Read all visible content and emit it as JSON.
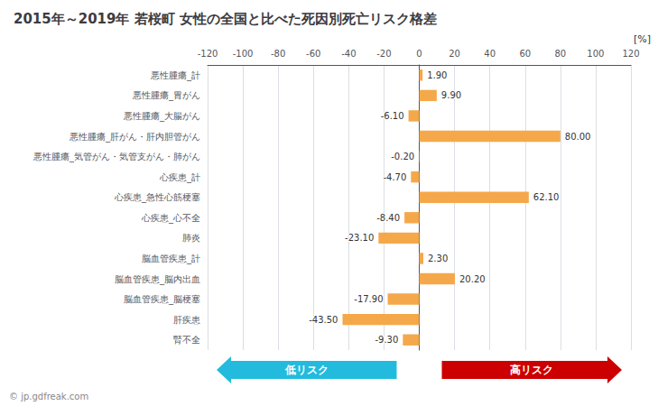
{
  "chart_data": {
    "type": "bar",
    "orientation": "horizontal",
    "title": "2015年～2019年 若桜町 女性の全国と比べた死因別死亡リスク格差",
    "categories": [
      "悪性腫瘍_計",
      "悪性腫瘍_胃がん",
      "悪性腫瘍_大腸がん",
      "悪性腫瘍_肝がん・肝内胆管がん",
      "悪性腫瘍_気管がん・気管支がん・肺がん",
      "心疾患_計",
      "心疾患_急性心筋梗塞",
      "心疾患_心不全",
      "肺炎",
      "脳血管疾患_計",
      "脳血管疾患_脳内出血",
      "脳血管疾患_脳梗塞",
      "肝疾患",
      "腎不全"
    ],
    "values": [
      1.9,
      9.9,
      -6.1,
      80.0,
      -0.2,
      -4.7,
      62.1,
      -8.4,
      -23.1,
      2.3,
      20.2,
      -17.9,
      -43.5,
      -9.3
    ],
    "value_labels": [
      "1.90",
      "9.90",
      "-6.10",
      "80.00",
      "-0.20",
      "-4.70",
      "62.10",
      "-8.40",
      "-23.10",
      "2.30",
      "20.20",
      "-17.90",
      "-43.50",
      "-9.30"
    ],
    "data_labels": true,
    "color": "#f5a84a",
    "xlabel": "[%]",
    "xlim": [
      -120,
      120
    ],
    "xticks": [
      -120,
      -100,
      -80,
      -60,
      -40,
      -20,
      0,
      20,
      40,
      60,
      80,
      100,
      120
    ],
    "grid": true,
    "annotations": [
      {
        "text": "低リスク",
        "color": "#22bbdd"
      },
      {
        "text": "高リスク",
        "color": "#cc0000"
      },
      {
        "text": "© jp.gdfreak.com",
        "color": "#888888"
      }
    ]
  }
}
